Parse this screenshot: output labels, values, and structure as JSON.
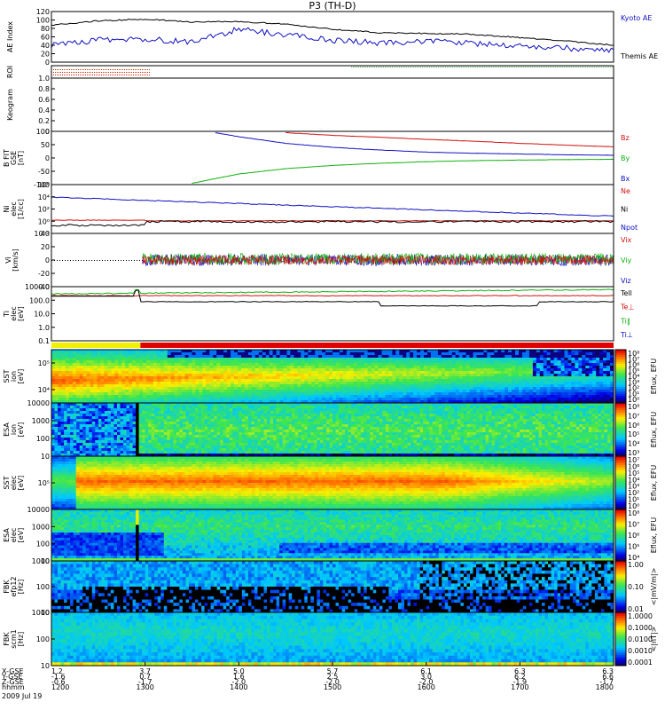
{
  "title": "P3 (TH-D)",
  "date": "2009 Jul 19",
  "panels": [
    {
      "id": "ae",
      "ylabel": [
        "AE Index"
      ],
      "ticks": [
        "0",
        "20",
        "40",
        "60",
        "80",
        "100",
        "120"
      ],
      "legend": [
        {
          "text": "Kyoto AE",
          "color": "#1010c0"
        },
        {
          "text": "Themis AE",
          "color": "#000000"
        }
      ]
    },
    {
      "id": "roi",
      "ylabel": [
        "ROI"
      ],
      "ticks": [],
      "legend": []
    },
    {
      "id": "keogram",
      "ylabel": [
        "Keogram"
      ],
      "ticks": [
        "0",
        "0.2",
        "0.4",
        "0.6",
        "0.8",
        "1.0"
      ],
      "legend": []
    },
    {
      "id": "bfield",
      "ylabel": [
        "B FIT",
        "GSE",
        "[nT]"
      ],
      "ticks": [
        "-100",
        "-50",
        "0",
        "50",
        "100"
      ],
      "legend": [
        {
          "text": "Bz",
          "color": "#d01010"
        },
        {
          "text": "By",
          "color": "#10b010"
        },
        {
          "text": "Bx",
          "color": "#1010c0"
        }
      ]
    },
    {
      "id": "density",
      "ylabel": [
        "Ni",
        "elec",
        "[1/cc]"
      ],
      "ticks": [
        "10⁻²",
        "10⁰",
        "10²",
        "10⁴",
        "10⁶"
      ],
      "legend": [
        {
          "text": "Ne",
          "color": "#d01010"
        },
        {
          "text": "Ni",
          "color": "#000000"
        },
        {
          "text": "Npot",
          "color": "#1010c0"
        }
      ]
    },
    {
      "id": "velocity",
      "ylabel": [
        "Vi",
        "[km/s]"
      ],
      "ticks": [
        "-40",
        "-20",
        "0",
        "20",
        "40"
      ],
      "legend": [
        {
          "text": "Vix",
          "color": "#d01010"
        },
        {
          "text": "Viy",
          "color": "#10b010"
        },
        {
          "text": "Viz",
          "color": "#1010c0"
        }
      ]
    },
    {
      "id": "temperature",
      "ylabel": [
        "Ti",
        "elec",
        "[eV]"
      ],
      "ticks": [
        "0.1",
        "1.0",
        "10.0",
        "100.0",
        "1000.0"
      ],
      "legend": [
        {
          "text": "Tell",
          "color": "#000000"
        },
        {
          "text": "Te⊥",
          "color": "#d01010"
        },
        {
          "text": "Ti‖",
          "color": "#10b010"
        },
        {
          "text": "Ti⊥",
          "color": "#1010c0"
        }
      ]
    },
    {
      "id": "sst_i",
      "ylabel": [
        "SST",
        "ion",
        "[eV]"
      ],
      "ticks": [
        "10⁴",
        "10⁵"
      ],
      "colorbar": {
        "label": "Eflux, EFU",
        "ticks": [
          "10⁸",
          "10⁷",
          "10⁶",
          "10⁵",
          "10⁴",
          "10³",
          "10²",
          "10¹",
          "10⁰"
        ]
      }
    },
    {
      "id": "esa_i",
      "ylabel": [
        "ESA",
        "ion",
        "[eV]"
      ],
      "ticks": [
        "10",
        "100",
        "1000",
        "10000"
      ],
      "colorbar": {
        "label": "Eflux, EFU",
        "ticks": [
          "10⁸",
          "10⁷",
          "10⁶",
          "10⁵",
          "10⁴",
          "10³"
        ]
      }
    },
    {
      "id": "sst_e",
      "ylabel": [
        "SST",
        "elec",
        "[eV]"
      ],
      "ticks": [
        "10⁵"
      ],
      "colorbar": {
        "label": "Eflux, EFU",
        "ticks": [
          "10⁷",
          "10⁶",
          "10⁵",
          "10⁴",
          "10³",
          "10²",
          "10¹",
          "10⁰"
        ]
      }
    },
    {
      "id": "esa_e",
      "ylabel": [
        "ESA",
        "elec",
        "[eV]"
      ],
      "ticks": [
        "10",
        "100",
        "1000",
        "10000"
      ],
      "colorbar": {
        "label": "Eflux, EFU",
        "ticks": [
          "10⁸",
          "10⁷",
          "10⁶",
          "10⁵",
          "10⁴"
        ]
      }
    },
    {
      "id": "fbk_e",
      "ylabel": [
        "FBK",
        "efp12",
        "[Hz]"
      ],
      "ticks": [
        "10",
        "100",
        "1000"
      ],
      "colorbar": {
        "label": "<|mV/m|>",
        "ticks": [
          "1.00",
          "0.10",
          "0.01"
        ]
      }
    },
    {
      "id": "fbk_b",
      "ylabel": [
        "FBK",
        "scm1",
        "[Hz]"
      ],
      "ticks": [
        "10",
        "100",
        "1000"
      ],
      "colorbar": {
        "label": "<|nT|>",
        "ticks": [
          "1.0000",
          "0.1000",
          "0.0100",
          "0.0010",
          "0.0001"
        ]
      }
    }
  ],
  "time_axis": {
    "row_labels": [
      "X-GSE",
      "Y-GSE",
      "Z-GSE",
      "hhmm"
    ],
    "columns": [
      {
        "x": "1.2",
        "y": "-1.6",
        "z": "-0.6",
        "t": "1200"
      },
      {
        "x": "3.7",
        "y": "0.7",
        "z": "-1.7",
        "t": "1300"
      },
      {
        "x": "5.0",
        "y": "1.6",
        "z": "-2.0",
        "t": "1400"
      },
      {
        "x": "5.7",
        "y": "2.5",
        "z": "-2.0",
        "t": "1500"
      },
      {
        "x": "6.1",
        "y": "3.0",
        "z": "-2.0",
        "t": "1600"
      },
      {
        "x": "6.3",
        "y": "6.2",
        "z": "-1.9",
        "t": "1700"
      },
      {
        "x": "6.3",
        "y": "6.6",
        "z": "-1.7",
        "t": "1800"
      }
    ]
  },
  "chart_data": {
    "type": "line",
    "title": "P3 (TH-D)",
    "x_unit": "hhmm UT",
    "xlim": [
      "1200",
      "1800"
    ],
    "series": [
      {
        "name": "Kyoto AE",
        "x": [
          "1200",
          "1230",
          "1300",
          "1330",
          "1400",
          "1430",
          "1500",
          "1530",
          "1600",
          "1630",
          "1700",
          "1730",
          "1800"
        ],
        "values": [
          40,
          52,
          55,
          48,
          78,
          65,
          52,
          45,
          50,
          44,
          38,
          33,
          30
        ]
      },
      {
        "name": "Themis AE",
        "x": [
          "1200",
          "1230",
          "1300",
          "1330",
          "1400",
          "1430",
          "1500",
          "1530",
          "1600",
          "1630",
          "1700",
          "1730",
          "1800"
        ],
        "values": [
          88,
          98,
          102,
          95,
          96,
          90,
          78,
          70,
          68,
          66,
          58,
          50,
          40
        ]
      },
      {
        "name": "Bz",
        "x": [
          "1430",
          "1500",
          "1530",
          "1600",
          "1630",
          "1700",
          "1730",
          "1800"
        ],
        "values": [
          95,
          85,
          78,
          70,
          63,
          55,
          48,
          42
        ]
      },
      {
        "name": "By",
        "x": [
          "1330",
          "1400",
          "1430",
          "1500",
          "1530",
          "1600",
          "1630",
          "1700",
          "1730",
          "1800"
        ],
        "values": [
          -95,
          -60,
          -40,
          -28,
          -20,
          -14,
          -10,
          -8,
          -6,
          -5
        ]
      },
      {
        "name": "Bx",
        "x": [
          "1345",
          "1400",
          "1430",
          "1500",
          "1530",
          "1600",
          "1630",
          "1700",
          "1730",
          "1800"
        ],
        "values": [
          95,
          80,
          55,
          40,
          30,
          22,
          18,
          15,
          12,
          10
        ]
      }
    ],
    "ylim_ae": [
      0,
      120
    ],
    "ylim_b": [
      -100,
      100
    ],
    "ylim_vi": [
      -50,
      50
    ]
  }
}
